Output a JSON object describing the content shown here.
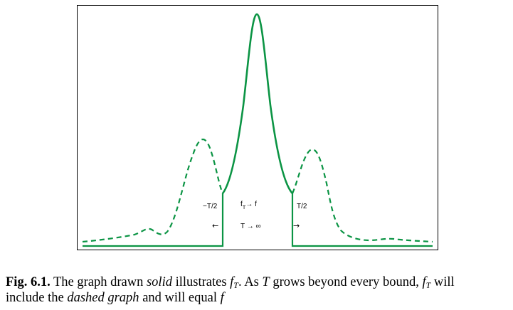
{
  "figure": {
    "labels": {
      "left_bound": "−T/2",
      "right_bound": "T/2",
      "limit_f": "f→ f",
      "limit_f_sub": "T",
      "limit_T": "T → ∞",
      "arrow_left": "←",
      "arrow_right": "→"
    },
    "colors": {
      "curve": "#0b9444",
      "frame": "#000000"
    },
    "curve_style": {
      "inside": "solid",
      "outside": "dashed"
    }
  },
  "caption": {
    "fig_number": "Fig. 6.1.",
    "t1": " The graph drawn ",
    "solid": "solid",
    "t2": " illustrates ",
    "fT1": "f",
    "fT1_sub": "T",
    "t3": ". As ",
    "T": "T",
    "t4": " grows beyond every bound, ",
    "fT2": "f",
    "fT2_sub": "T",
    "t5": " will",
    "line2_a": "include the ",
    "dashed_graph": "dashed graph",
    "line2_b": " and will equal ",
    "f": "f"
  }
}
